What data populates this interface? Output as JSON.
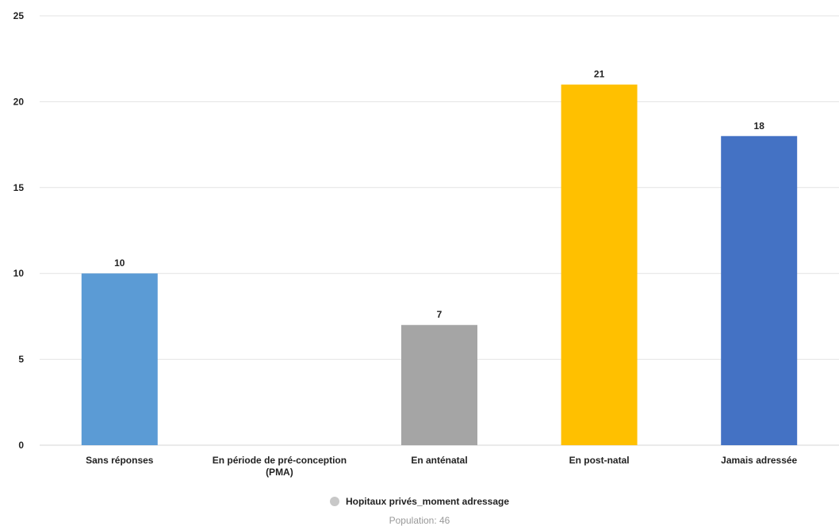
{
  "chart_data": {
    "type": "bar",
    "categories": [
      "Sans réponses",
      "En période de pré-conception (PMA)",
      "En anténatal",
      "En post-natal",
      "Jamais adressée"
    ],
    "category_lines": [
      [
        "Sans réponses"
      ],
      [
        "En période de pré-conception",
        "(PMA)"
      ],
      [
        "En anténatal"
      ],
      [
        "En post-natal"
      ],
      [
        "Jamais adressée"
      ]
    ],
    "series": [
      {
        "name": "Hopitaux privés_moment adressage",
        "values": [
          10,
          0,
          7,
          21,
          18
        ]
      }
    ],
    "bar_colors": [
      "#5b9bd5",
      "#5b9bd5",
      "#a5a5a5",
      "#ffc000",
      "#4472c4"
    ],
    "data_labels": [
      "10",
      "",
      "7",
      "21",
      "18"
    ],
    "ylim": [
      0,
      25
    ],
    "yticks": [
      0,
      5,
      10,
      15,
      20,
      25
    ],
    "grid": true,
    "legend_position": "bottom-center",
    "legend_dot_color": "#c8c8c8",
    "xlabel": "",
    "ylabel": ""
  },
  "legend": {
    "label": "Hopitaux privés_moment adressage"
  },
  "footer": {
    "population": "Population: 46"
  }
}
